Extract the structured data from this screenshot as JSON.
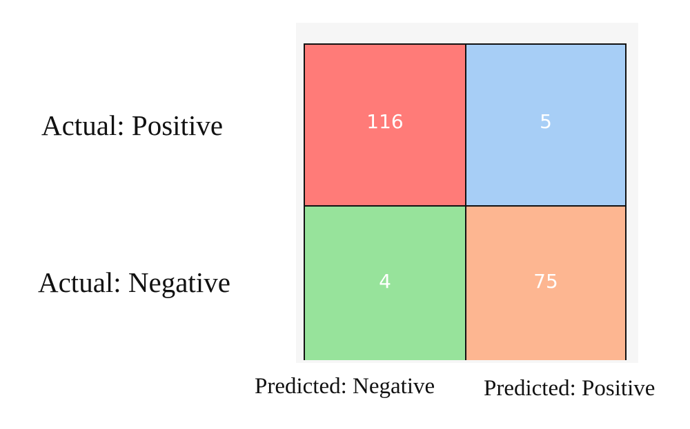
{
  "chart_data": {
    "type": "heatmap",
    "rows": [
      "Actual: Positive",
      "Actual: Negative"
    ],
    "columns": [
      "Predicted: Negative",
      "Predicted: Positive"
    ],
    "values": [
      [
        116,
        5
      ],
      [
        4,
        75
      ]
    ],
    "cell_colors": [
      [
        "#ff7b78",
        "#a7cef6"
      ],
      [
        "#97e39b",
        "#fdb691"
      ]
    ],
    "value_color": "#ffffff"
  }
}
